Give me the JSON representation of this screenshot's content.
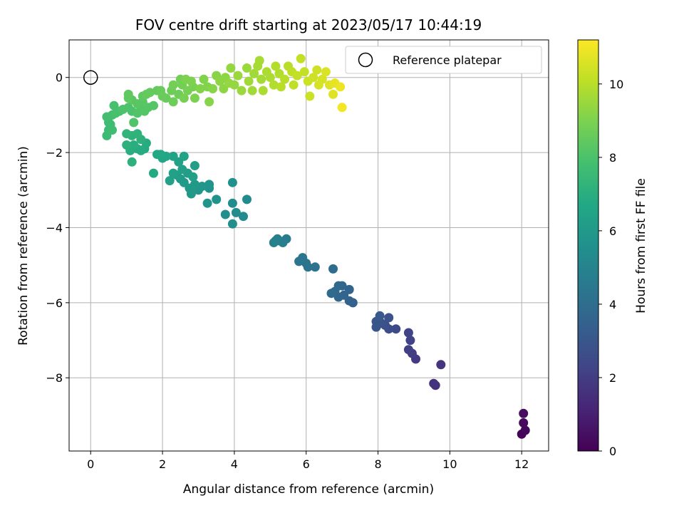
{
  "chart_data": {
    "type": "scatter",
    "title": "FOV centre drift starting at 2023/05/17 10:44:19",
    "xlabel": "Angular distance from reference (arcmin)",
    "ylabel": "Rotation from reference (arcmin)",
    "xlim": [
      -0.6,
      12.75
    ],
    "ylim": [
      -9.95,
      1.0
    ],
    "xticks": [
      0,
      2,
      4,
      6,
      8,
      10,
      12
    ],
    "yticks": [
      0,
      -2,
      -4,
      -6,
      -8
    ],
    "grid": true,
    "legend": {
      "position": "top-right",
      "entries": [
        "Reference platepar"
      ]
    },
    "reference_point": {
      "x": 0,
      "y": 0
    },
    "colorbar": {
      "label": "Hours from first FF file",
      "range": [
        0,
        11.2
      ],
      "ticks": [
        0,
        2,
        4,
        6,
        8,
        10
      ],
      "colormap": "viridis"
    },
    "series": [
      {
        "columns": [
          "x",
          "y",
          "hours"
        ],
        "points": [
          [
            12.0,
            -9.5,
            0.1
          ],
          [
            12.1,
            -9.4,
            0.2
          ],
          [
            12.05,
            -9.2,
            0.3
          ],
          [
            12.05,
            -8.95,
            0.4
          ],
          [
            9.6,
            -8.2,
            1.5
          ],
          [
            9.55,
            -8.15,
            1.6
          ],
          [
            9.75,
            -7.65,
            1.7
          ],
          [
            9.05,
            -7.5,
            1.9
          ],
          [
            8.95,
            -7.35,
            2.0
          ],
          [
            8.85,
            -7.25,
            2.1
          ],
          [
            8.9,
            -7.0,
            2.2
          ],
          [
            8.85,
            -6.8,
            2.3
          ],
          [
            8.5,
            -6.7,
            2.5
          ],
          [
            8.3,
            -6.7,
            2.6
          ],
          [
            8.2,
            -6.6,
            2.7
          ],
          [
            8.3,
            -6.4,
            2.8
          ],
          [
            8.1,
            -6.55,
            2.9
          ],
          [
            7.95,
            -6.65,
            3.0
          ],
          [
            7.95,
            -6.5,
            3.0
          ],
          [
            8.05,
            -6.35,
            3.1
          ],
          [
            7.3,
            -6.0,
            3.4
          ],
          [
            7.2,
            -5.95,
            3.5
          ],
          [
            7.2,
            -5.65,
            3.6
          ],
          [
            7.05,
            -5.8,
            3.6
          ],
          [
            7.0,
            -5.55,
            3.7
          ],
          [
            6.9,
            -5.85,
            3.7
          ],
          [
            6.8,
            -5.7,
            3.8
          ],
          [
            6.9,
            -5.55,
            3.8
          ],
          [
            6.7,
            -5.75,
            3.9
          ],
          [
            6.75,
            -5.1,
            4.0
          ],
          [
            6.25,
            -5.05,
            4.2
          ],
          [
            6.05,
            -5.05,
            4.3
          ],
          [
            6.0,
            -4.95,
            4.3
          ],
          [
            5.9,
            -4.8,
            4.4
          ],
          [
            5.8,
            -4.9,
            4.4
          ],
          [
            5.45,
            -4.3,
            4.6
          ],
          [
            5.35,
            -4.4,
            4.7
          ],
          [
            5.25,
            -4.35,
            4.7
          ],
          [
            5.2,
            -4.3,
            4.8
          ],
          [
            5.1,
            -4.4,
            4.8
          ],
          [
            5.15,
            -4.35,
            4.9
          ],
          [
            4.35,
            -3.25,
            5.3
          ],
          [
            4.25,
            -3.7,
            5.3
          ],
          [
            4.05,
            -3.6,
            5.4
          ],
          [
            3.95,
            -3.35,
            5.4
          ],
          [
            3.95,
            -3.9,
            5.5
          ],
          [
            3.75,
            -3.65,
            5.5
          ],
          [
            3.95,
            -2.8,
            5.6
          ],
          [
            3.5,
            -3.25,
            5.7
          ],
          [
            3.3,
            -2.95,
            5.7
          ],
          [
            3.25,
            -3.35,
            5.8
          ],
          [
            3.3,
            -2.85,
            5.8
          ],
          [
            3.1,
            -2.9,
            5.9
          ],
          [
            3.0,
            -3.0,
            5.9
          ],
          [
            2.9,
            -2.85,
            6.0
          ],
          [
            2.8,
            -3.1,
            6.0
          ],
          [
            2.75,
            -2.95,
            6.0
          ],
          [
            2.6,
            -2.8,
            6.1
          ],
          [
            2.5,
            -2.7,
            6.1
          ],
          [
            2.4,
            -2.6,
            6.2
          ],
          [
            2.7,
            -2.55,
            6.2
          ],
          [
            2.9,
            -2.35,
            6.2
          ],
          [
            2.85,
            -2.65,
            6.3
          ],
          [
            2.55,
            -2.45,
            6.3
          ],
          [
            2.45,
            -2.25,
            6.4
          ],
          [
            2.3,
            -2.55,
            6.4
          ],
          [
            2.2,
            -2.75,
            6.4
          ],
          [
            2.6,
            -2.1,
            6.5
          ],
          [
            2.3,
            -2.1,
            6.5
          ],
          [
            2.1,
            -2.1,
            6.6
          ],
          [
            2.0,
            -2.15,
            6.6
          ],
          [
            1.95,
            -2.05,
            6.7
          ],
          [
            1.85,
            -2.05,
            6.7
          ],
          [
            1.75,
            -2.55,
            6.8
          ],
          [
            1.5,
            -1.9,
            6.8
          ],
          [
            1.55,
            -1.75,
            6.9
          ],
          [
            1.4,
            -1.95,
            6.9
          ],
          [
            1.3,
            -1.9,
            6.9
          ],
          [
            1.2,
            -1.8,
            7.0
          ],
          [
            1.1,
            -1.95,
            7.0
          ],
          [
            1.0,
            -1.8,
            7.1
          ],
          [
            1.15,
            -2.25,
            7.1
          ],
          [
            1.4,
            -1.65,
            7.1
          ],
          [
            1.3,
            -1.5,
            7.2
          ],
          [
            1.15,
            -1.55,
            7.2
          ],
          [
            1.0,
            -1.5,
            7.3
          ],
          [
            0.45,
            -1.55,
            7.6
          ],
          [
            0.5,
            -1.4,
            7.6
          ],
          [
            0.55,
            -1.25,
            7.7
          ],
          [
            0.6,
            -1.4,
            7.7
          ],
          [
            0.5,
            -1.2,
            7.7
          ],
          [
            0.45,
            -1.05,
            7.8
          ],
          [
            0.6,
            -1.0,
            7.8
          ],
          [
            0.7,
            -0.95,
            7.9
          ],
          [
            0.65,
            -0.75,
            7.9
          ],
          [
            0.8,
            -0.9,
            7.9
          ],
          [
            0.9,
            -0.85,
            8.0
          ],
          [
            1.05,
            -0.8,
            8.0
          ],
          [
            1.15,
            -0.9,
            8.0
          ],
          [
            1.2,
            -1.2,
            8.1
          ],
          [
            1.3,
            -0.95,
            8.1
          ],
          [
            1.4,
            -0.8,
            8.1
          ],
          [
            1.5,
            -0.9,
            8.2
          ],
          [
            1.6,
            -0.8,
            8.2
          ],
          [
            1.75,
            -0.75,
            8.2
          ],
          [
            1.45,
            -0.65,
            8.3
          ],
          [
            1.3,
            -0.7,
            8.3
          ],
          [
            1.15,
            -0.6,
            8.3
          ],
          [
            1.05,
            -0.55,
            8.4
          ],
          [
            1.05,
            -0.45,
            8.4
          ],
          [
            1.45,
            -0.5,
            8.4
          ],
          [
            1.55,
            -0.45,
            8.5
          ],
          [
            1.65,
            -0.4,
            8.5
          ],
          [
            1.85,
            -0.35,
            8.5
          ],
          [
            2.0,
            -0.5,
            8.6
          ],
          [
            2.1,
            -0.55,
            8.6
          ],
          [
            1.95,
            -0.35,
            8.6
          ],
          [
            2.25,
            -0.35,
            8.7
          ],
          [
            2.3,
            -0.65,
            8.7
          ],
          [
            2.45,
            -0.45,
            8.7
          ],
          [
            2.3,
            -0.2,
            8.8
          ],
          [
            2.55,
            -0.2,
            8.8
          ],
          [
            2.5,
            -0.05,
            8.8
          ],
          [
            2.6,
            -0.55,
            8.9
          ],
          [
            2.7,
            -0.35,
            8.9
          ],
          [
            2.85,
            -0.25,
            8.9
          ],
          [
            2.65,
            -0.05,
            9.0
          ],
          [
            2.8,
            -0.1,
            9.0
          ],
          [
            2.9,
            -0.55,
            9.0
          ],
          [
            3.05,
            -0.3,
            9.1
          ],
          [
            3.15,
            -0.05,
            9.1
          ],
          [
            3.25,
            -0.25,
            9.1
          ],
          [
            3.3,
            -0.65,
            9.2
          ],
          [
            3.4,
            -0.3,
            9.2
          ],
          [
            3.5,
            0.05,
            9.2
          ],
          [
            3.6,
            -0.1,
            9.3
          ],
          [
            3.7,
            -0.3,
            9.3
          ],
          [
            3.75,
            0.0,
            9.3
          ],
          [
            3.85,
            -0.15,
            9.4
          ],
          [
            3.9,
            0.25,
            9.4
          ],
          [
            4.0,
            -0.2,
            9.4
          ],
          [
            4.1,
            0.05,
            9.5
          ],
          [
            4.2,
            -0.35,
            9.5
          ],
          [
            4.35,
            0.25,
            9.5
          ],
          [
            4.4,
            -0.1,
            9.6
          ],
          [
            4.5,
            -0.35,
            9.6
          ],
          [
            4.55,
            0.1,
            9.6
          ],
          [
            4.65,
            0.3,
            9.7
          ],
          [
            4.7,
            0.45,
            9.7
          ],
          [
            4.75,
            -0.05,
            9.7
          ],
          [
            4.8,
            -0.35,
            9.8
          ],
          [
            4.9,
            0.15,
            9.8
          ],
          [
            5.0,
            0.0,
            9.8
          ],
          [
            5.1,
            -0.2,
            9.9
          ],
          [
            5.15,
            0.3,
            9.9
          ],
          [
            5.25,
            0.1,
            9.9
          ],
          [
            5.3,
            -0.25,
            10.0
          ],
          [
            5.4,
            -0.05,
            10.0
          ],
          [
            5.5,
            0.3,
            10.0
          ],
          [
            5.6,
            0.15,
            10.1
          ],
          [
            5.65,
            -0.2,
            10.1
          ],
          [
            5.75,
            0.05,
            10.2
          ],
          [
            5.85,
            0.5,
            10.2
          ],
          [
            5.95,
            0.15,
            10.2
          ],
          [
            6.05,
            -0.1,
            10.3
          ],
          [
            6.1,
            -0.5,
            10.3
          ],
          [
            6.2,
            0.0,
            10.4
          ],
          [
            6.3,
            0.2,
            10.4
          ],
          [
            6.35,
            -0.2,
            10.5
          ],
          [
            6.45,
            -0.05,
            10.5
          ],
          [
            6.55,
            0.15,
            10.6
          ],
          [
            6.65,
            -0.2,
            10.7
          ],
          [
            6.75,
            -0.45,
            10.7
          ],
          [
            6.8,
            -0.15,
            10.8
          ],
          [
            6.95,
            -0.25,
            10.9
          ],
          [
            7.0,
            -0.8,
            11.0
          ]
        ]
      }
    ]
  }
}
